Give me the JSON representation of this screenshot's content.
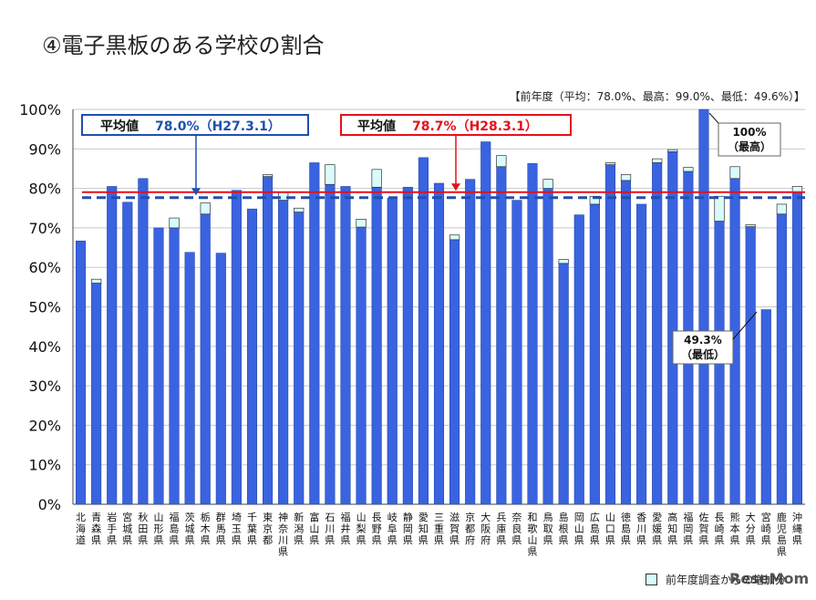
{
  "title": "④電子黒板のある学校の割合",
  "note": "【前年度（平均：78.0%、最高：99.0%、最低：49.6%）】",
  "legend": {
    "prev_year": "前年度調査からの増加分"
  },
  "watermark": "ReseMom",
  "colors": {
    "bar": "#3a63e0",
    "increase": "#d9fbfb",
    "avg_prev": "#1f4fb0",
    "avg_curr": "#e5101a"
  },
  "callouts": {
    "avg_prev": {
      "label": "平均値",
      "value": "78.0%（H27.3.1）"
    },
    "avg_curr": {
      "label": "平均値",
      "value": "78.7%（H28.3.1）"
    },
    "max": {
      "value": "100%",
      "sub": "（最高）"
    },
    "min": {
      "value": "49.3%",
      "sub": "（最低）"
    }
  },
  "chart_data": {
    "type": "bar",
    "ylim": [
      0,
      100
    ],
    "yticks": [
      "0%",
      "10%",
      "20%",
      "30%",
      "40%",
      "50%",
      "60%",
      "70%",
      "80%",
      "90%",
      "100%"
    ],
    "grid": true,
    "categories": [
      "北海道",
      "青森県",
      "岩手県",
      "宮城県",
      "秋田県",
      "山形県",
      "福島県",
      "茨城県",
      "栃木県",
      "群馬県",
      "埼玉県",
      "千葉県",
      "東京都",
      "神奈川県",
      "新潟県",
      "富山県",
      "石川県",
      "福井県",
      "山梨県",
      "長野県",
      "岐阜県",
      "静岡県",
      "愛知県",
      "三重県",
      "滋賀県",
      "京都府",
      "大阪府",
      "兵庫県",
      "奈良県",
      "和歌山県",
      "鳥取県",
      "島根県",
      "岡山県",
      "広島県",
      "山口県",
      "徳島県",
      "香川県",
      "愛媛県",
      "高知県",
      "福岡県",
      "佐賀県",
      "長崎県",
      "熊本県",
      "大分県",
      "宮崎県",
      "鹿児島県",
      "沖縄県"
    ],
    "series": [
      {
        "name": "前年度",
        "values": [
          66.7,
          56.0,
          80.5,
          76.5,
          82.5,
          70.0,
          70.0,
          63.8,
          73.5,
          63.6,
          79.5,
          74.8,
          83.0,
          77.0,
          74.0,
          86.5,
          81.0,
          80.5,
          70.2,
          80.3,
          77.5,
          80.3,
          87.8,
          81.3,
          67.0,
          82.3,
          91.8,
          85.5,
          77.0,
          86.3,
          80.0,
          61.0,
          73.3,
          76.0,
          86.0,
          82.0,
          76.0,
          86.5,
          89.3,
          84.3,
          100.0,
          71.7,
          82.5,
          70.3,
          49.3,
          73.5,
          79.0
        ]
      },
      {
        "name": "前年度調査からの増加分",
        "values": [
          0,
          1.0,
          0,
          0,
          0,
          0,
          2.5,
          0,
          2.8,
          0,
          0,
          0,
          0.5,
          2.0,
          1.0,
          0,
          5.0,
          0,
          2.0,
          4.5,
          0,
          0,
          0,
          0,
          1.2,
          0,
          0,
          2.8,
          0,
          0,
          2.3,
          1.0,
          0,
          2.0,
          0.5,
          1.5,
          0,
          1.0,
          0.5,
          1.0,
          0,
          6.3,
          3.0,
          0.5,
          0,
          2.5,
          1.5
        ]
      }
    ],
    "avg_prev": 78.0,
    "avg_curr": 78.7
  }
}
